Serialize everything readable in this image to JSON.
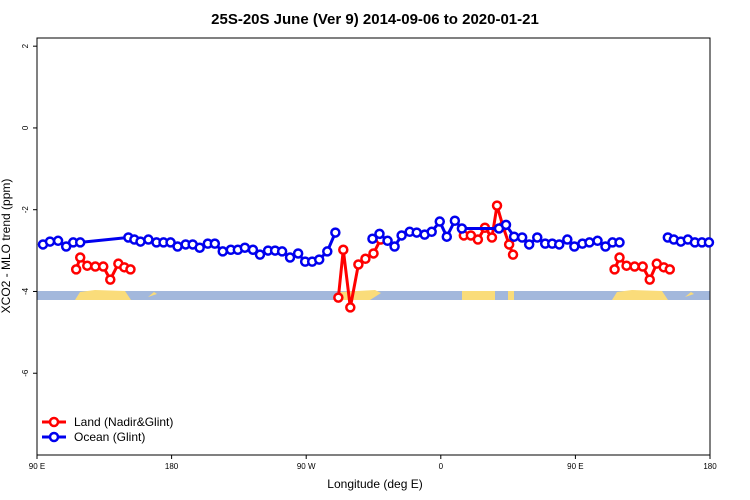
{
  "chart_data": {
    "type": "line",
    "title": "25S-20S June (Ver 9)   2014-09-06 to 2020-01-21",
    "xlabel": "Longitude (deg E)",
    "ylabel": "XCO2 - MLO trend (ppm)",
    "xlim": [
      90,
      540
    ],
    "ylim": [
      -8,
      2.2
    ],
    "xticks": [
      {
        "value": 90,
        "label": "90 E"
      },
      180,
      {
        "value": 270,
        "label": "90 W"
      },
      {
        "value": 360,
        "label": "0"
      },
      {
        "value": 450,
        "label": "90 E"
      },
      {
        "value": 540,
        "label": "180"
      }
    ],
    "yticks": [
      2,
      0,
      -2,
      -4,
      -6
    ],
    "legend": "bottom-left",
    "series": [
      {
        "name": "Land (Nadir&Glint)",
        "color": "#ff0000",
        "x": [
          116.2,
          118.9,
          123.6,
          129.0,
          134.3,
          139.0,
          144.4,
          148.4,
          152.5,
          null,
          291.5,
          294.8,
          299.5,
          304.9,
          309.6,
          315.0,
          319.7,
          null,
          375.4,
          380.1,
          384.8,
          389.5,
          394.2,
          397.6,
          401.6,
          405.7,
          408.3,
          null,
          476.2,
          479.5,
          484.2,
          489.6,
          495.0,
          499.7,
          504.4,
          509.1,
          513.1
        ],
        "values": [
          -3.46,
          -3.17,
          -3.37,
          -3.39,
          -3.39,
          -3.71,
          -3.32,
          -3.41,
          -3.46,
          null,
          -4.15,
          -2.98,
          -4.39,
          -3.34,
          -3.2,
          -3.07,
          -2.73,
          null,
          -2.63,
          -2.63,
          -2.73,
          -2.44,
          -2.68,
          -1.9,
          -2.41,
          -2.85,
          -3.1,
          null,
          -3.46,
          -3.17,
          -3.37,
          -3.39,
          -3.39,
          -3.71,
          -3.32,
          -3.41,
          -3.46
        ]
      },
      {
        "name": "Ocean (Glint)",
        "color": "#0000ee",
        "x": [
          94.0,
          98.7,
          104.1,
          109.5,
          114.2,
          118.9,
          151.1,
          155.1,
          159.2,
          164.5,
          169.9,
          174.6,
          179.3,
          184.0,
          189.4,
          194.1,
          198.8,
          204.2,
          208.9,
          214.2,
          219.6,
          224.3,
          229.0,
          234.4,
          239.1,
          244.5,
          249.2,
          253.9,
          259.2,
          264.6,
          269.3,
          274.0,
          278.7,
          284.1,
          289.5,
          null,
          314.3,
          319.0,
          324.4,
          329.1,
          333.8,
          339.2,
          343.9,
          349.2,
          353.9,
          359.3,
          364.0,
          369.4,
          374.1,
          398.9,
          403.6,
          409.0,
          414.4,
          419.1,
          424.5,
          429.8,
          434.5,
          439.2,
          444.6,
          449.3,
          454.7,
          459.4,
          464.8,
          470.1,
          474.8,
          479.5,
          null,
          511.8,
          515.8,
          520.5,
          525.2,
          529.9,
          534.6,
          539.3
        ],
        "values": [
          -2.85,
          -2.78,
          -2.76,
          -2.9,
          -2.8,
          -2.8,
          -2.68,
          -2.73,
          -2.78,
          -2.73,
          -2.8,
          -2.8,
          -2.8,
          -2.9,
          -2.85,
          -2.85,
          -2.93,
          -2.83,
          -2.83,
          -3.02,
          -2.98,
          -2.98,
          -2.93,
          -2.98,
          -3.1,
          -3.0,
          -3.0,
          -3.02,
          -3.17,
          -3.07,
          -3.27,
          -3.27,
          -3.22,
          -3.02,
          -2.56,
          null,
          -2.71,
          -2.59,
          -2.76,
          -2.9,
          -2.63,
          -2.54,
          -2.56,
          -2.61,
          -2.54,
          -2.29,
          -2.66,
          -2.27,
          -2.46,
          -2.46,
          -2.37,
          -2.66,
          -2.68,
          -2.85,
          -2.68,
          -2.83,
          -2.83,
          -2.85,
          -2.73,
          -2.9,
          -2.83,
          -2.8,
          -2.76,
          -2.9,
          -2.8,
          -2.8,
          null,
          -2.68,
          -2.73,
          -2.78,
          -2.73,
          -2.8,
          -2.8,
          -2.8
        ]
      }
    ]
  }
}
